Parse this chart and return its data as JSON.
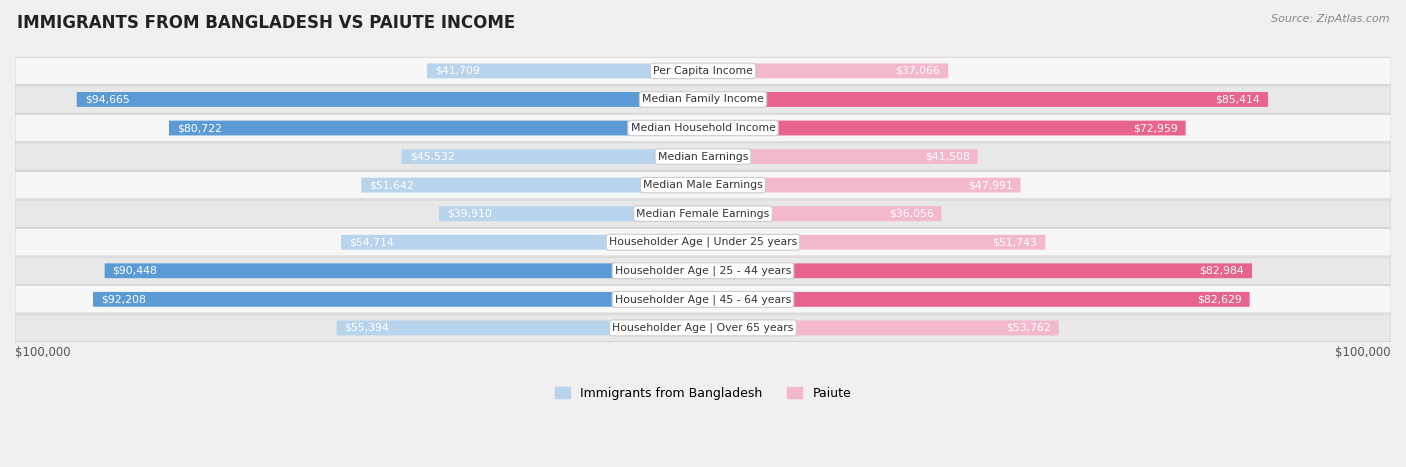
{
  "title": "IMMIGRANTS FROM BANGLADESH VS PAIUTE INCOME",
  "source": "Source: ZipAtlas.com",
  "categories": [
    "Per Capita Income",
    "Median Family Income",
    "Median Household Income",
    "Median Earnings",
    "Median Male Earnings",
    "Median Female Earnings",
    "Householder Age | Under 25 years",
    "Householder Age | 25 - 44 years",
    "Householder Age | 45 - 64 years",
    "Householder Age | Over 65 years"
  ],
  "bangladesh_values": [
    41709,
    94665,
    80722,
    45532,
    51642,
    39910,
    54714,
    90448,
    92208,
    55394
  ],
  "paiute_values": [
    37066,
    85414,
    72959,
    41508,
    47991,
    36056,
    51743,
    82984,
    82629,
    53762
  ],
  "bangladesh_color_light": "#b8d4ed",
  "bangladesh_color_dark": "#5b9bd5",
  "paiute_color_light": "#f4b8cc",
  "paiute_color_dark": "#e8648c",
  "color_threshold": 65000,
  "max_value": 100000,
  "background_color": "#f0f0f0",
  "row_bg_even": "#f7f7f7",
  "row_bg_odd": "#e8e8e8",
  "label_inside_color": "#ffffff",
  "label_outside_color": "#555555",
  "legend_bangladesh": "Immigrants from Bangladesh",
  "legend_paiute": "Paiute",
  "xlabel_left": "$100,000",
  "xlabel_right": "$100,000",
  "inside_label_threshold": 20000
}
